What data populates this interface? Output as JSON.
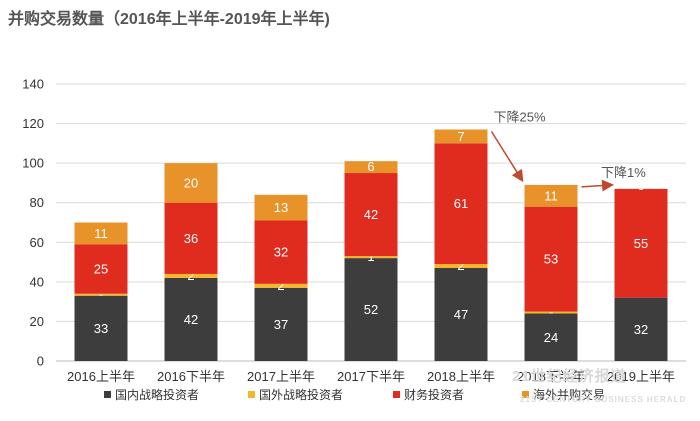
{
  "chart_data": {
    "type": "bar",
    "stacked": true,
    "title": "并购交易数量（2016年上半年-2019年上半年)",
    "categories": [
      "2016上半年",
      "2016下半年",
      "2017上半年",
      "2017下半年",
      "2018上半年",
      "2018下半年",
      "2019上半年"
    ],
    "ylim": [
      0,
      140
    ],
    "yticks": [
      0,
      20,
      40,
      60,
      80,
      100,
      120,
      140
    ],
    "grid": true,
    "legend_position": "bottom",
    "series": [
      {
        "name": "国内战略投资者",
        "color": "#3d3d3d",
        "values": [
          33,
          42,
          37,
          52,
          47,
          24,
          32
        ],
        "labels": [
          "33",
          "42",
          "37",
          "52",
          "47",
          "24",
          "32"
        ]
      },
      {
        "name": "国外战略投资者",
        "color": "#f7b52c",
        "values": [
          1,
          2,
          2,
          1,
          2,
          1,
          0
        ],
        "labels": [
          "-",
          "2",
          "2",
          "1",
          "2",
          "-",
          ""
        ]
      },
      {
        "name": "财务投资者",
        "color": "#e02b1f",
        "values": [
          25,
          36,
          32,
          42,
          61,
          53,
          55
        ],
        "labels": [
          "25",
          "36",
          "32",
          "42",
          "61",
          "53",
          "55"
        ]
      },
      {
        "name": "海外并购交易",
        "color": "#e8922a",
        "values": [
          11,
          20,
          13,
          6,
          7,
          11,
          0
        ],
        "labels": [
          "11",
          "20",
          "13",
          "6",
          "7",
          "11",
          "-"
        ]
      }
    ],
    "annotations": [
      {
        "text": "下降25%",
        "from_category": "2018上半年",
        "to_category": "2018下半年"
      },
      {
        "text": "下降1%",
        "from_category": "2018下半年",
        "to_category": "2019上半年"
      }
    ]
  }
}
